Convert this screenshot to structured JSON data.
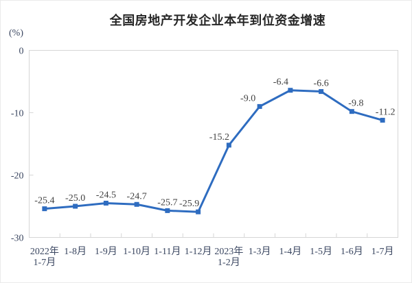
{
  "page": {
    "background": "#ffffff",
    "border_color": "#eaeaea"
  },
  "chart_data": {
    "type": "line",
    "title": "全国房地产开发企业本年到位资金增速",
    "y_unit_label": "(%)",
    "categories": [
      [
        "2022年",
        "1-7月"
      ],
      [
        "1-8月"
      ],
      [
        "1-9月"
      ],
      [
        "1-10月"
      ],
      [
        "1-11月"
      ],
      [
        "1-12月"
      ],
      [
        "2023年",
        "1-2月"
      ],
      [
        "1-3月"
      ],
      [
        "1-4月"
      ],
      [
        "1-5月"
      ],
      [
        "1-6月"
      ],
      [
        "1-7月"
      ]
    ],
    "values": [
      -25.4,
      -25.0,
      -24.5,
      -24.7,
      -25.7,
      -25.9,
      -15.2,
      -9.0,
      -6.4,
      -6.6,
      -9.8,
      -11.2
    ],
    "point_labels": [
      "-25.4",
      "-25.0",
      "-24.5",
      "-24.7",
      "-25.7",
      "-25.9",
      "-15.2",
      "-9.0",
      "-6.4",
      "-6.6",
      "-9.8",
      "-11.2"
    ],
    "ylim": [
      -30,
      0
    ],
    "yticks": [
      0,
      -10,
      -20,
      -30
    ],
    "ytick_labels": [
      "0",
      "-10",
      "-20",
      "-30"
    ],
    "grid": false,
    "legend": false,
    "line_color": "#2e6cc0",
    "marker_color": "#2e6cc0",
    "axis_color": "#d6d6d6",
    "tick_label_color": "#3a4660",
    "data_label_color": "#404040",
    "title_color": "#262626"
  }
}
